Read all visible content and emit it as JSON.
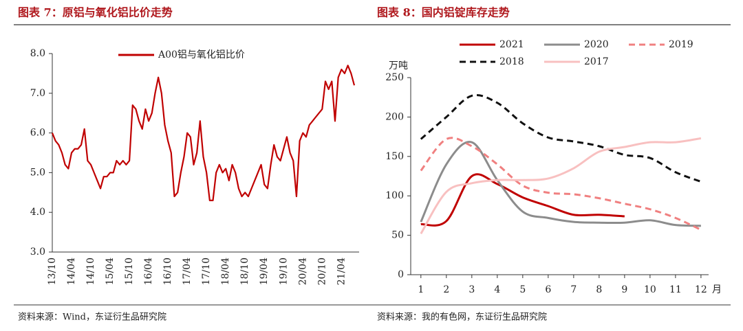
{
  "chart_data": [
    {
      "type": "line",
      "title": "图表 7：原铝与氧化铝比价走势",
      "categories": [
        "13/10",
        null,
        null,
        null,
        null,
        null,
        "14/04",
        null,
        null,
        null,
        null,
        null,
        "14/10",
        null,
        null,
        null,
        null,
        null,
        "15/04",
        null,
        null,
        null,
        null,
        null,
        "15/10",
        null,
        null,
        null,
        null,
        null,
        "16/04",
        null,
        null,
        null,
        null,
        null,
        "16/10",
        null,
        null,
        null,
        null,
        null,
        "17/04",
        null,
        null,
        null,
        null,
        null,
        "17/10",
        null,
        null,
        null,
        null,
        null,
        "18/04",
        null,
        null,
        null,
        null,
        null,
        "18/10",
        null,
        null,
        null,
        null,
        null,
        "19/04",
        null,
        null,
        null,
        null,
        null,
        "19/10",
        null,
        null,
        null,
        null,
        null,
        "20/04",
        null,
        null,
        null,
        null,
        null,
        "20/10",
        null,
        null,
        null,
        null,
        null,
        "21/04",
        null,
        null,
        null,
        null
      ],
      "series": [
        {
          "name": "A00铝与氧化铝比价",
          "color": "#c00000",
          "values": [
            6.0,
            5.8,
            5.7,
            5.5,
            5.2,
            5.1,
            5.5,
            5.6,
            5.6,
            5.7,
            6.1,
            5.3,
            5.2,
            5.0,
            4.8,
            4.6,
            4.9,
            4.9,
            5.0,
            5.0,
            5.3,
            5.2,
            5.3,
            5.2,
            5.3,
            6.7,
            6.6,
            6.3,
            6.1,
            6.6,
            6.3,
            6.5,
            7.0,
            7.4,
            7.0,
            6.2,
            5.8,
            5.5,
            4.4,
            4.5,
            5.0,
            5.4,
            6.0,
            5.9,
            5.2,
            5.5,
            6.3,
            5.4,
            5.0,
            4.3,
            4.3,
            5.0,
            5.2,
            5.0,
            5.1,
            4.8,
            5.2,
            5.0,
            4.6,
            4.4,
            4.5,
            4.4,
            4.6,
            4.8,
            5.0,
            5.2,
            4.7,
            4.6,
            5.2,
            5.7,
            5.4,
            5.3,
            5.6,
            5.9,
            5.5,
            5.3,
            4.4,
            5.8,
            6.0,
            5.9,
            6.2,
            6.3,
            6.4,
            6.5,
            6.6,
            7.3,
            7.1,
            7.3,
            6.3,
            7.4,
            7.6,
            7.5,
            7.7,
            7.5,
            7.2
          ]
        }
      ],
      "ylim": [
        3,
        8
      ],
      "yticks": [
        {
          "value": 3,
          "label": "3.0"
        },
        {
          "value": 4,
          "label": "4.0"
        },
        {
          "value": 5,
          "label": "5.0"
        },
        {
          "value": 6,
          "label": "6.0"
        },
        {
          "value": 7,
          "label": "7.0"
        },
        {
          "value": 8,
          "label": "8.0"
        }
      ],
      "legend": "top",
      "grid": false,
      "source": "资料来源：Wind，东证衍生品研究院"
    },
    {
      "type": "line",
      "title": "图表 8：国内铝锭库存走势",
      "y_label": "万吨",
      "x_label": "月",
      "x": [
        1,
        2,
        3,
        4,
        5,
        6,
        7,
        8,
        9,
        10,
        11,
        12
      ],
      "xlim": [
        0.6,
        12.3
      ],
      "xticks": [
        1,
        2,
        3,
        4,
        5,
        6,
        7,
        8,
        9,
        10,
        11,
        12
      ],
      "ylim": [
        0,
        250
      ],
      "yticks": [
        0,
        50,
        100,
        150,
        200,
        250
      ],
      "series": [
        {
          "name": "2021",
          "color": "#c00000",
          "dash": false,
          "values": [
            64,
            68,
            125,
            115,
            98,
            87,
            76,
            76,
            74,
            null,
            null,
            null
          ]
        },
        {
          "name": "2020",
          "color": "#8c8c8c",
          "dash": false,
          "values": [
            67,
            140,
            168,
            120,
            80,
            72,
            67,
            66,
            66,
            69,
            63,
            62
          ]
        },
        {
          "name": "2019",
          "color": "#f08080",
          "dash": true,
          "values": [
            132,
            172,
            163,
            140,
            113,
            104,
            102,
            97,
            90,
            83,
            72,
            57
          ]
        },
        {
          "name": "2018",
          "color": "#111111",
          "dash": true,
          "values": [
            172,
            200,
            227,
            218,
            192,
            174,
            169,
            163,
            152,
            148,
            130,
            118
          ]
        },
        {
          "name": "2017",
          "color": "#f8c0c0",
          "dash": false,
          "values": [
            52,
            105,
            116,
            120,
            120,
            122,
            135,
            156,
            162,
            168,
            168,
            173
          ]
        }
      ],
      "legend": "top",
      "grid": false,
      "source": "资料来源：我的有色网，东证衍生品研究院"
    }
  ]
}
